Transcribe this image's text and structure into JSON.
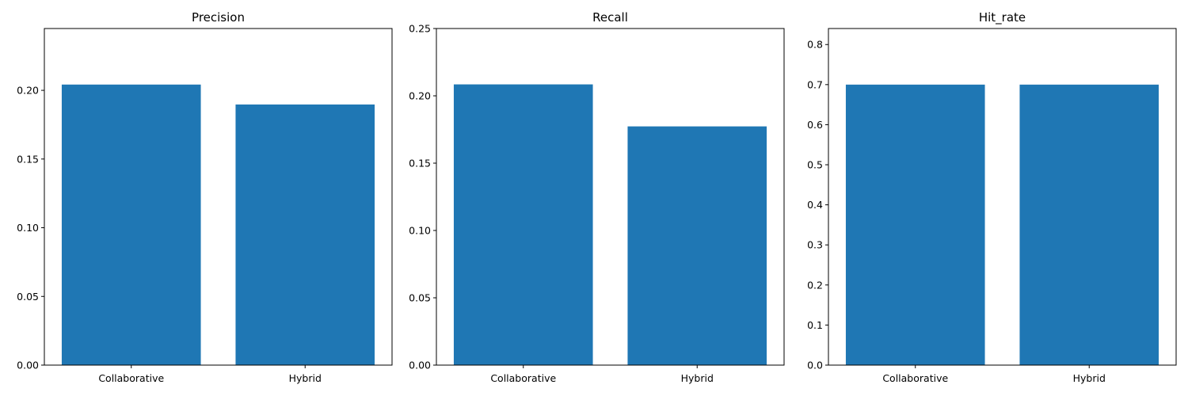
{
  "chart_data": [
    {
      "type": "bar",
      "title": "Precision",
      "xlabel": "",
      "ylabel": "",
      "categories": [
        "Collaborative",
        "Hybrid"
      ],
      "values": [
        0.2042,
        0.1897
      ],
      "ylim": [
        0,
        0.245
      ],
      "yticks": [
        "0.00",
        "0.05",
        "0.10",
        "0.15",
        "0.20"
      ],
      "ytick_values": [
        0,
        0.05,
        0.1,
        0.15,
        0.2
      ],
      "bar_color": "#1f77b4",
      "grid": false,
      "legend": "none"
    },
    {
      "type": "bar",
      "title": "Recall",
      "xlabel": "",
      "ylabel": "",
      "categories": [
        "Collaborative",
        "Hybrid"
      ],
      "values": [
        0.2085,
        0.1773
      ],
      "ylim": [
        0,
        0.25
      ],
      "yticks": [
        "0.00",
        "0.05",
        "0.10",
        "0.15",
        "0.20",
        "0.25"
      ],
      "ytick_values": [
        0,
        0.05,
        0.1,
        0.15,
        0.2,
        0.25
      ],
      "bar_color": "#1f77b4",
      "grid": false,
      "legend": "none"
    },
    {
      "type": "bar",
      "title": "Hit_rate",
      "xlabel": "",
      "ylabel": "",
      "categories": [
        "Collaborative",
        "Hybrid"
      ],
      "values": [
        0.7,
        0.7
      ],
      "ylim": [
        0,
        0.84
      ],
      "yticks": [
        "0.0",
        "0.1",
        "0.2",
        "0.3",
        "0.4",
        "0.5",
        "0.6",
        "0.7",
        "0.8"
      ],
      "ytick_values": [
        0,
        0.1,
        0.2,
        0.3,
        0.4,
        0.5,
        0.6,
        0.7,
        0.8
      ],
      "bar_color": "#1f77b4",
      "grid": false,
      "legend": "none"
    }
  ]
}
